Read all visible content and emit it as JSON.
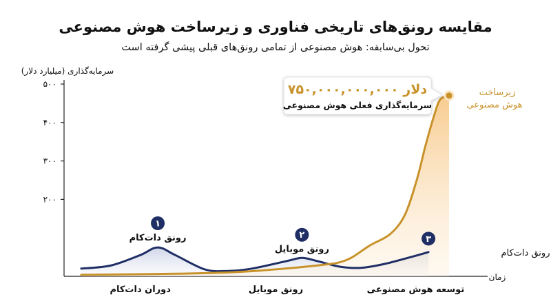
{
  "colors": {
    "navy": "#1f2f66",
    "navy_fill": "#dfe3ef",
    "gold": "#c8922a",
    "gold_fill": "#f9dcae",
    "axis": "#222222"
  },
  "chart_data": {
    "type": "line",
    "title": "مقایسه رونق‌های تاریخی فناوری و زیرساخت هوش مصنوعی",
    "subtitle": "تحول بی‌سابقه: هوش مصنوعی از تمامی رونق‌های قبلی پیشی گرفته است",
    "ylabel": "سرمایه‌گذاری (میلیارد دلار)",
    "xlabel": "زمان",
    "ylim": [
      0,
      500
    ],
    "y_ticks": [
      200,
      300,
      400,
      500
    ],
    "y_tick_labels": [
      "۲۰۰",
      "۳۰۰",
      "۴۰۰",
      "۵۰۰"
    ],
    "x_category_labels": [
      "دوران دات‌کام",
      "رونق موبایل",
      "توسعه هوش مصنوعی"
    ],
    "x_category_positions": [
      0.18,
      0.5,
      0.83
    ],
    "series": [
      {
        "key": "navy",
        "name": "رونق دات‌کام",
        "points": [
          [
            0,
            20
          ],
          [
            0.1,
            28
          ],
          [
            0.2,
            55
          ],
          [
            0.26,
            75
          ],
          [
            0.32,
            55
          ],
          [
            0.42,
            18
          ],
          [
            0.5,
            14
          ],
          [
            0.58,
            20
          ],
          [
            0.7,
            40
          ],
          [
            0.75,
            48
          ],
          [
            0.8,
            40
          ],
          [
            0.88,
            25
          ],
          [
            0.95,
            22
          ],
          [
            1.03,
            32
          ],
          [
            1.12,
            50
          ],
          [
            1.18,
            63
          ]
        ]
      },
      {
        "key": "gold",
        "name": "زیرساخت هوش مصنوعی",
        "points": [
          [
            0,
            4
          ],
          [
            0.35,
            7
          ],
          [
            0.55,
            12
          ],
          [
            0.8,
            28
          ],
          [
            0.9,
            42
          ],
          [
            0.98,
            80
          ],
          [
            1.05,
            110
          ],
          [
            1.1,
            160
          ],
          [
            1.14,
            250
          ],
          [
            1.17,
            340
          ],
          [
            1.2,
            420
          ],
          [
            1.22,
            460
          ],
          [
            1.25,
            470
          ]
        ]
      }
    ],
    "badges": [
      {
        "num": "۱",
        "label": "رونق دات‌کام",
        "x": 0.26,
        "y": 138
      },
      {
        "num": "۲",
        "label": "رونق موبایل",
        "x": 0.75,
        "y": 108
      },
      {
        "num": "۳",
        "label": "رونق دات‌کام",
        "x": 1.18,
        "y": 98
      }
    ],
    "callout": {
      "value": "۷۵۰,۰۰۰,۰۰۰,۰۰۰ دلار",
      "caption": "سرمایه‌گذاری فعلی هوش مصنوعی"
    },
    "gold_end_label": [
      "زیرساخت",
      "هوش مصنوعی"
    ],
    "navy_end_label": "رونق دات‌کام"
  }
}
